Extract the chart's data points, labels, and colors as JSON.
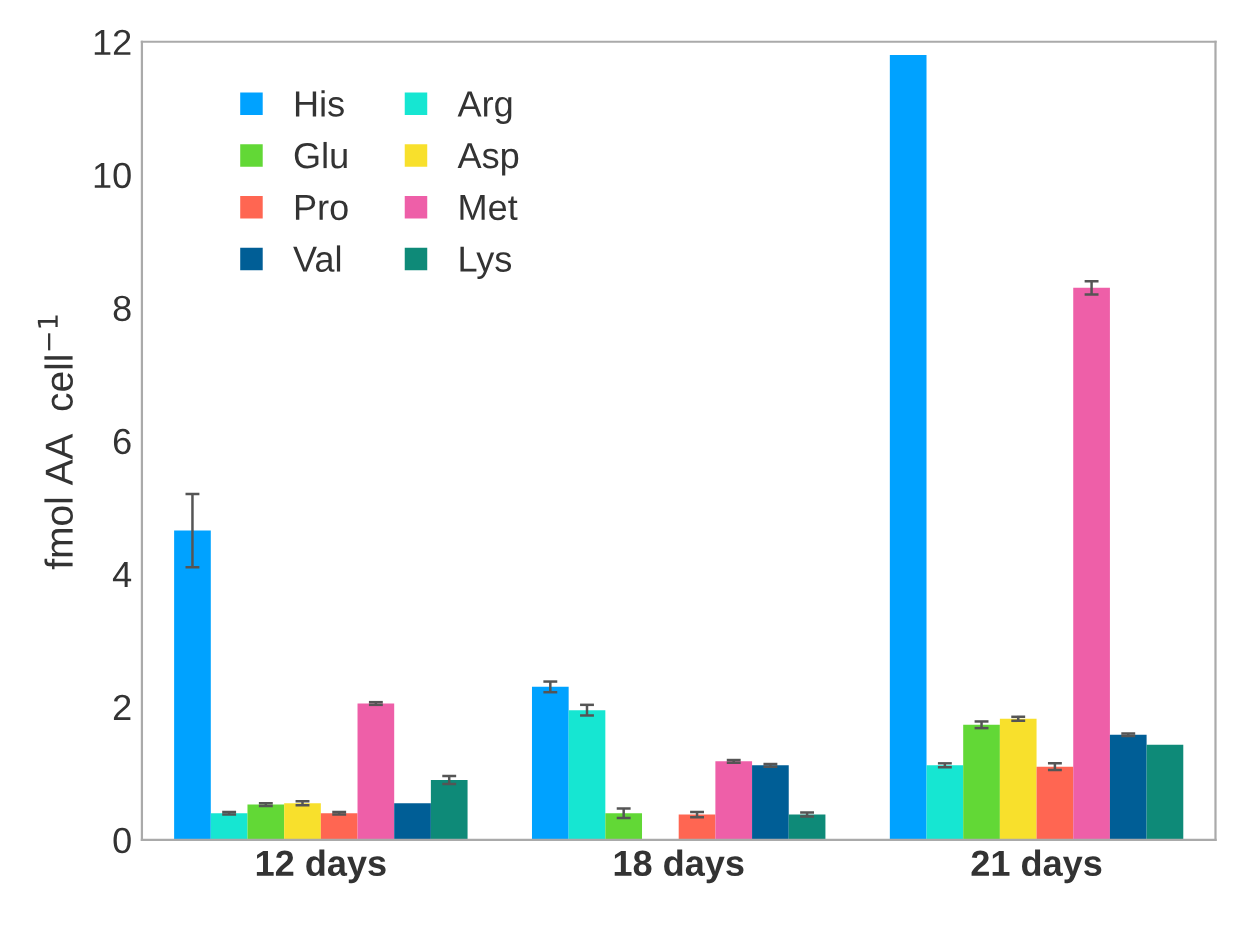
{
  "chart_data": {
    "type": "bar",
    "ylabel": "fmol AA  cell$^{−1}$",
    "categories": [
      "12 days",
      "18 days",
      "21 days"
    ],
    "series": [
      {
        "name": "His",
        "color": "#00a2ff",
        "values": [
          4.65,
          2.3,
          11.8
        ],
        "errors": [
          0.55,
          0.08,
          null
        ]
      },
      {
        "name": "Arg",
        "color": "#16e6d2",
        "values": [
          0.4,
          1.95,
          1.12
        ],
        "errors": [
          0.02,
          0.08,
          0.03
        ]
      },
      {
        "name": "Glu",
        "color": "#62d836",
        "values": [
          0.53,
          0.4,
          1.73
        ],
        "errors": [
          0.02,
          0.07,
          0.05
        ]
      },
      {
        "name": "Asp",
        "color": "#f8e02c",
        "values": [
          0.55,
          null,
          1.82
        ],
        "errors": [
          0.03,
          null,
          0.03
        ]
      },
      {
        "name": "Pro",
        "color": "#ff6652",
        "values": [
          0.4,
          0.38,
          1.1
        ],
        "errors": [
          0.02,
          0.04,
          0.05
        ]
      },
      {
        "name": "Met",
        "color": "#ee5fa8",
        "values": [
          2.05,
          1.18,
          8.3
        ],
        "errors": [
          0.02,
          0.02,
          0.1
        ]
      },
      {
        "name": "Val",
        "color": "#005e96",
        "values": [
          0.55,
          1.12,
          1.58
        ],
        "errors": [
          null,
          0.02,
          0.02
        ]
      },
      {
        "name": "Lys",
        "color": "#0e8a78",
        "values": [
          0.9,
          0.38,
          1.43
        ],
        "errors": [
          0.06,
          0.03,
          null
        ]
      }
    ],
    "ylim": [
      0,
      12
    ],
    "yticks": [
      0,
      2,
      4,
      6,
      8,
      10,
      12
    ],
    "grid": false,
    "legend": "top left"
  }
}
